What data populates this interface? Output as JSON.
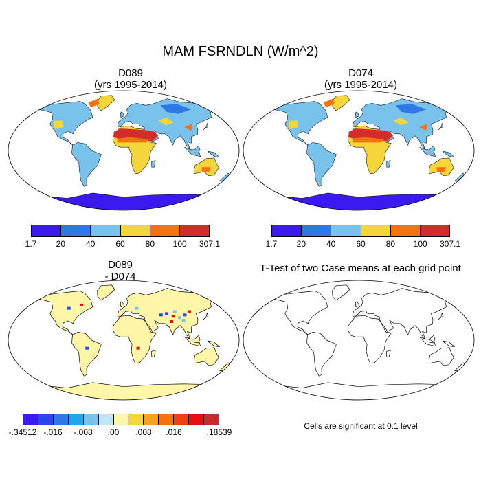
{
  "figure": {
    "title": "MAM FSRNDLN (W/m^2)"
  },
  "panels": {
    "top_left": {
      "title_line1": "D089",
      "title_line2": "(yrs 1995-2014)"
    },
    "top_right": {
      "title_line1": "D074",
      "title_line2": "(yrs 1995-2014)"
    },
    "bottom_left": {
      "title_line1": "D089",
      "title_line2": "- D074"
    },
    "bottom_right": {
      "title": "T-Test of two Case means at each grid point",
      "footnote": "Cells are significant at 0.1 level"
    }
  },
  "colorbar_top": {
    "colors": [
      "#3a1af0",
      "#2f78e6",
      "#78c2ec",
      "#f5d63a",
      "#f5720c",
      "#d42b2b"
    ],
    "labels": [
      "1.7",
      "20",
      "40",
      "60",
      "80",
      "100",
      "307.1"
    ]
  },
  "colorbar_bottom": {
    "colors": [
      "#3a1af0",
      "#2a46ea",
      "#2f78e6",
      "#21a6ea",
      "#78c2ec",
      "#bfe6f5",
      "#fff6a8",
      "#f5d63a",
      "#f5a21c",
      "#f5720c",
      "#ee4010",
      "#e41010",
      "#c82a2a"
    ],
    "labels": [
      "-.34512",
      "-.016",
      "-.008",
      ".00",
      ".008",
      ".016",
      ".18539"
    ]
  },
  "chart_data": [
    {
      "type": "heatmap",
      "title": "D089",
      "subtitle": "(yrs 1995-2014)",
      "levels": [
        1.7,
        20,
        40,
        60,
        80,
        100,
        307.1
      ]
    },
    {
      "type": "heatmap",
      "title": "D074",
      "subtitle": "(yrs 1995-2014)",
      "levels": [
        1.7,
        20,
        40,
        60,
        80,
        100,
        307.1
      ]
    },
    {
      "type": "heatmap",
      "title": "D089",
      "subtitle": "- D074",
      "levels": [
        -0.34512,
        -0.016,
        -0.008,
        0.0,
        0.008,
        0.016,
        0.18539
      ]
    },
    {
      "type": "heatmap",
      "title": "T-Test of two Case means at each grid point",
      "note": "Cells are significant at 0.1 level"
    }
  ]
}
